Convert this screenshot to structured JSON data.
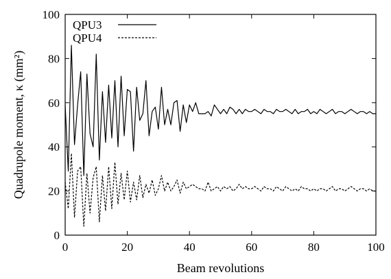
{
  "chart_data": {
    "type": "line",
    "xlabel": "Beam revolutions",
    "ylabel": "Quadrupole moment, κ (mm²)",
    "xlim": [
      0,
      100
    ],
    "ylim": [
      0,
      100
    ],
    "xticks": [
      0,
      20,
      40,
      60,
      80,
      100
    ],
    "yticks": [
      0,
      20,
      40,
      60,
      80,
      100
    ],
    "grid": false,
    "legend_position": "top-left",
    "series": [
      {
        "name": "QPU3",
        "line_style": "solid",
        "color": "#000000",
        "x": [
          0,
          1,
          2,
          3,
          4,
          5,
          6,
          7,
          8,
          9,
          10,
          11,
          12,
          13,
          14,
          15,
          16,
          17,
          18,
          19,
          20,
          21,
          22,
          23,
          24,
          25,
          26,
          27,
          28,
          29,
          30,
          31,
          32,
          33,
          34,
          35,
          36,
          37,
          38,
          39,
          40,
          41,
          42,
          43,
          44,
          45,
          46,
          47,
          48,
          49,
          50,
          51,
          52,
          53,
          54,
          55,
          56,
          57,
          58,
          59,
          60,
          61,
          62,
          63,
          64,
          65,
          66,
          67,
          68,
          69,
          70,
          71,
          72,
          73,
          74,
          75,
          76,
          77,
          78,
          79,
          80,
          81,
          82,
          83,
          84,
          85,
          86,
          87,
          88,
          89,
          90,
          91,
          92,
          93,
          94,
          95,
          96,
          97,
          98,
          99,
          100
        ],
        "values": [
          59,
          29,
          86,
          41,
          59,
          74,
          27,
          73,
          46,
          40,
          82,
          34,
          65,
          42,
          68,
          44,
          70,
          40,
          72,
          45,
          66,
          65,
          38,
          67,
          52,
          55,
          70,
          45,
          56,
          58,
          48,
          67,
          50,
          57,
          50,
          60,
          61,
          47,
          59,
          51,
          59,
          56,
          60,
          55,
          55,
          55,
          56,
          54,
          59,
          57,
          55,
          57,
          55,
          58,
          57,
          55,
          57,
          55,
          57,
          56,
          56,
          57,
          56,
          55,
          57,
          56,
          56,
          55,
          57,
          56,
          56,
          57,
          56,
          55,
          57,
          55,
          56,
          56,
          57,
          55,
          56,
          55,
          57,
          56,
          55,
          56,
          57,
          55,
          56,
          56,
          55,
          56,
          57,
          56,
          55,
          56,
          56,
          55,
          56,
          55,
          55
        ]
      },
      {
        "name": "QPU4",
        "line_style": "dashed",
        "color": "#000000",
        "x": [
          0,
          1,
          2,
          3,
          4,
          5,
          6,
          7,
          8,
          9,
          10,
          11,
          12,
          13,
          14,
          15,
          16,
          17,
          18,
          19,
          20,
          21,
          22,
          23,
          24,
          25,
          26,
          27,
          28,
          29,
          30,
          31,
          32,
          33,
          34,
          35,
          36,
          37,
          38,
          39,
          40,
          41,
          42,
          43,
          44,
          45,
          46,
          47,
          48,
          49,
          50,
          51,
          52,
          53,
          54,
          55,
          56,
          57,
          58,
          59,
          60,
          61,
          62,
          63,
          64,
          65,
          66,
          67,
          68,
          69,
          70,
          71,
          72,
          73,
          74,
          75,
          76,
          77,
          78,
          79,
          80,
          81,
          82,
          83,
          84,
          85,
          86,
          87,
          88,
          89,
          90,
          91,
          92,
          93,
          94,
          95,
          96,
          97,
          98,
          99,
          100
        ],
        "values": [
          24,
          12,
          37,
          8,
          29,
          31,
          4,
          28,
          10,
          26,
          31,
          6,
          27,
          11,
          31,
          12,
          33,
          14,
          28,
          16,
          29,
          15,
          24,
          16,
          27,
          17,
          23,
          19,
          25,
          18,
          21,
          27,
          20,
          24,
          20,
          22,
          25,
          19,
          24,
          21,
          22,
          23,
          22,
          21,
          21,
          20,
          24,
          20,
          21,
          22,
          20,
          22,
          21,
          22,
          20,
          21,
          23,
          21,
          22,
          21,
          21,
          22,
          21,
          20,
          22,
          21,
          21,
          20,
          22,
          21,
          20,
          22,
          21,
          20,
          21,
          20,
          22,
          21,
          21,
          20,
          21,
          20,
          21,
          21,
          20,
          21,
          22,
          20,
          21,
          21,
          20,
          21,
          22,
          21,
          20,
          21,
          21,
          20,
          21,
          20,
          20
        ]
      }
    ]
  }
}
